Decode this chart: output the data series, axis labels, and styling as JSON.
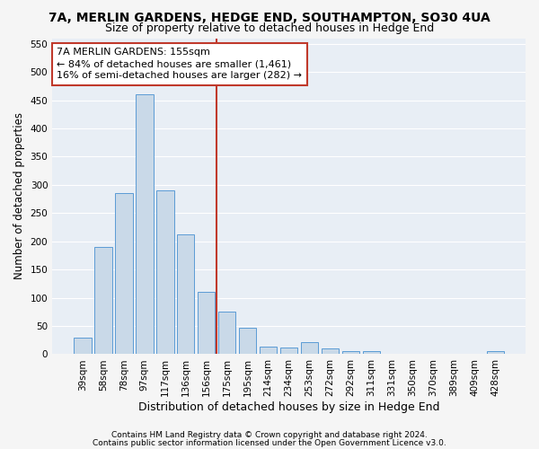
{
  "title1": "7A, MERLIN GARDENS, HEDGE END, SOUTHAMPTON, SO30 4UA",
  "title2": "Size of property relative to detached houses in Hedge End",
  "xlabel": "Distribution of detached houses by size in Hedge End",
  "ylabel": "Number of detached properties",
  "categories": [
    "39sqm",
    "58sqm",
    "78sqm",
    "97sqm",
    "117sqm",
    "136sqm",
    "156sqm",
    "175sqm",
    "195sqm",
    "214sqm",
    "234sqm",
    "253sqm",
    "272sqm",
    "292sqm",
    "311sqm",
    "331sqm",
    "350sqm",
    "370sqm",
    "389sqm",
    "409sqm",
    "428sqm"
  ],
  "values": [
    30,
    190,
    285,
    460,
    290,
    213,
    110,
    75,
    47,
    13,
    12,
    22,
    10,
    5,
    5,
    0,
    0,
    0,
    0,
    0,
    5
  ],
  "bar_color": "#c9d9e8",
  "bar_edge_color": "#5b9bd5",
  "vline_color": "#c0392b",
  "annotation_text": "7A MERLIN GARDENS: 155sqm\n← 84% of detached houses are smaller (1,461)\n16% of semi-detached houses are larger (282) →",
  "annotation_box_color": "#c0392b",
  "ylim": [
    0,
    560
  ],
  "yticks": [
    0,
    50,
    100,
    150,
    200,
    250,
    300,
    350,
    400,
    450,
    500,
    550
  ],
  "footer1": "Contains HM Land Registry data © Crown copyright and database right 2024.",
  "footer2": "Contains public sector information licensed under the Open Government Licence v3.0.",
  "background_color": "#e8eef5",
  "fig_background_color": "#f5f5f5",
  "grid_color": "#ffffff",
  "title1_fontsize": 10,
  "title2_fontsize": 9,
  "xlabel_fontsize": 9,
  "ylabel_fontsize": 8.5,
  "tick_fontsize": 7.5,
  "annotation_fontsize": 8,
  "footer_fontsize": 6.5
}
